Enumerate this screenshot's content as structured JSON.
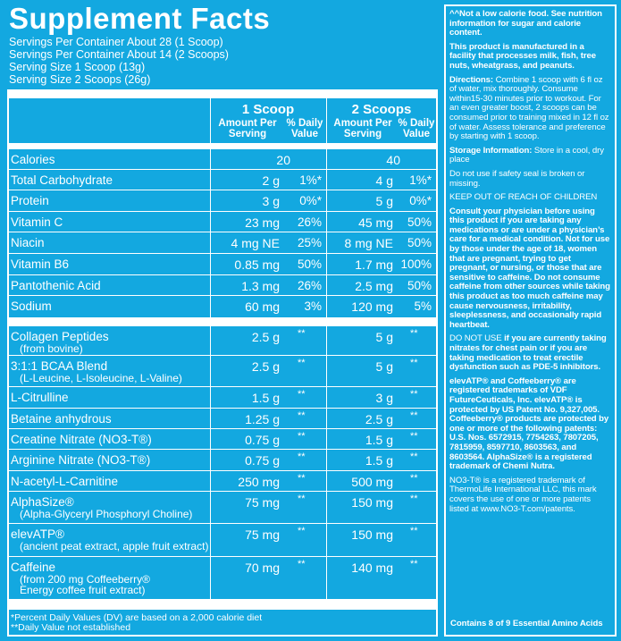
{
  "title": "Supplement Facts",
  "servings": [
    "Servings Per Container About 28 (1 Scoop)",
    "Servings Per Container About 14 (2 Scoops)",
    "Serving Size 1 Scoop (13g)",
    "Serving Size 2 Scoops (26g)"
  ],
  "header": {
    "col1": "1 Scoop",
    "col2": "2 Scoops",
    "amount": "Amount Per Serving",
    "amount_l1": "Amount Per",
    "amount_l2": "Serving",
    "dv_l1": "% Daily",
    "dv_l2": "Value"
  },
  "nutrients": [
    {
      "name": "Calories",
      "a1": "20",
      "d1": "",
      "a2": "40",
      "d2": ""
    },
    {
      "name": "Total Carbohydrate",
      "a1": "2 g",
      "d1": "1%*",
      "a2": "4 g",
      "d2": "1%*"
    },
    {
      "name": "Protein",
      "a1": "3 g",
      "d1": "0%*",
      "a2": "5 g",
      "d2": "0%*"
    },
    {
      "name": "Vitamin C",
      "a1": "23 mg",
      "d1": "26%",
      "a2": "45 mg",
      "d2": "50%"
    },
    {
      "name": "Niacin",
      "a1": "4 mg NE",
      "d1": "25%",
      "a2": "8 mg NE",
      "d2": "50%"
    },
    {
      "name": "Vitamin B6",
      "a1": "0.85 mg",
      "d1": "50%",
      "a2": "1.7 mg",
      "d2": "100%"
    },
    {
      "name": "Pantothenic Acid",
      "a1": "1.3 mg",
      "d1": "26%",
      "a2": "2.5 mg",
      "d2": "50%"
    },
    {
      "name": "Sodium",
      "a1": "60 mg",
      "d1": "3%",
      "a2": "120 mg",
      "d2": "5%"
    }
  ],
  "ingredients": [
    {
      "name": "Collagen Peptides",
      "sub": [
        "(from bovine)"
      ],
      "a1": "2.5 g",
      "d1": "**",
      "a2": "5 g",
      "d2": "**"
    },
    {
      "name": "3:1:1 BCAA Blend",
      "sub": [
        "(L-Leucine, L-Isoleucine, L-Valine)"
      ],
      "a1": "2.5 g",
      "d1": "**",
      "a2": "5 g",
      "d2": "**"
    },
    {
      "name": "L-Citrulline",
      "sub": [],
      "a1": "1.5 g",
      "d1": "**",
      "a2": "3 g",
      "d2": "**"
    },
    {
      "name": "Betaine anhydrous",
      "sub": [],
      "a1": "1.25 g",
      "d1": "**",
      "a2": "2.5 g",
      "d2": "**"
    },
    {
      "name": "Creatine Nitrate (NO3-T®)",
      "sub": [],
      "a1": "0.75 g",
      "d1": "**",
      "a2": "1.5 g",
      "d2": "**"
    },
    {
      "name": "Arginine Nitrate (NO3-T®)",
      "sub": [],
      "a1": "0.75 g",
      "d1": "**",
      "a2": "1.5 g",
      "d2": "**"
    },
    {
      "name": "N-acetyl-L-Carnitine",
      "sub": [],
      "a1": "250 mg",
      "d1": "**",
      "a2": "500 mg",
      "d2": "**"
    },
    {
      "name": "AlphaSize®",
      "sub": [
        "(Alpha-Glyceryl Phosphoryl Choline)"
      ],
      "a1": "75 mg",
      "d1": "**",
      "a2": "150 mg",
      "d2": "**"
    },
    {
      "name": "elevATP®",
      "sub": [
        "(ancient peat extract, apple fruit extract)"
      ],
      "a1": "75 mg",
      "d1": "**",
      "a2": "150 mg",
      "d2": "**"
    },
    {
      "name": "Caffeine",
      "sub": [
        "(from 200 mg Coffeeberry®",
        "Energy coffee fruit extract)"
      ],
      "a1": "70 mg",
      "d1": "**",
      "a2": "140 mg",
      "d2": "**"
    }
  ],
  "footnotes": [
    "*Percent Daily Values (DV) are based on a 2,000 calorie diet",
    "**Daily Value not established"
  ],
  "side": {
    "p1": "^^Not a low calorie food. See nutrition information for sugar and calorie content.",
    "p2": "This product is manufactured in a facility that processes milk, fish, tree nuts, wheatgrass, and peanuts.",
    "p3_label": "Directions:",
    "p3": " Combine 1 scoop with 6 fl oz of water, mix thoroughly. Consume within15-30 minutes prior to workout. For an even greater boost, 2 scoops can be consumed prior to training mixed in 12 fl oz of water. Assess tolerance and preference by starting with 1 scoop.",
    "p4_label": "Storage Information:",
    "p4": " Store in a cool, dry place",
    "p5": "Do not use if safety seal is broken or missing.",
    "p6": "KEEP OUT OF REACH OF CHILDREN",
    "p7": "Consult your physician before using this product if you are taking any medications or are under a physician’s care for a medical condition. Not for use by those under the age of 18, women that are pregnant, trying to get pregnant, or nursing, or those that are sensitive to caffeine. Do not consume caffeine from other sources while taking this product as too much caffeine may cause nervousness, irritability, sleeplessness, and occasionally rapid heartbeat.",
    "p8_label": "DO NOT USE",
    "p8": " if you are currently taking nitrates for chest pain or if you are taking medication to treat erectile dysfunction such as PDE-5 inhibitors.",
    "p9": "elevATP® and Coffeeberry® are registered trademarks of VDF FutureCeuticals, Inc. elevATP® is protected by US Patent No. 9,327,005. Coffeeberry® products are protected by one or more of the following patents: U.S. Nos. 6572915, 7754263, 7807205, 7815959, 8597710, 8603563, and 8603564.  AlphaSize® is a registered trademark of Chemi Nutra.",
    "p10": "NO3-T® is a registered trademark of ThermoLife International LLC, this mark covers the use of one or more patents listed at www.NO3-T.com/patents.",
    "contains": "Contains 8 of 9 Essential Amino Acids"
  },
  "colors": {
    "background": "#13a8e0",
    "text": "#ffffff"
  }
}
